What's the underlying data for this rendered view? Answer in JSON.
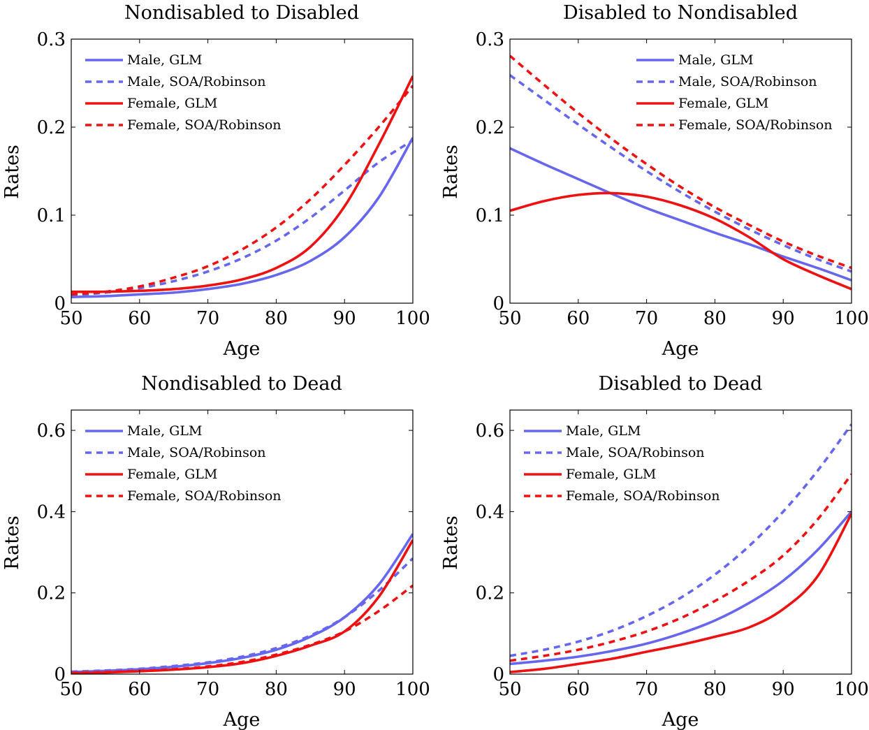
{
  "chart_data": [
    {
      "type": "line",
      "title": "Nondisabled to Disabled",
      "xlabel": "Age",
      "ylabel": "Rates",
      "xlim": [
        50,
        100
      ],
      "ylim": [
        0,
        0.3
      ],
      "xticks": [
        50,
        60,
        70,
        80,
        90,
        100
      ],
      "yticks": [
        0,
        0.1,
        0.2,
        0.3
      ],
      "xtick_labels": [
        "50",
        "60",
        "70",
        "80",
        "90",
        "100"
      ],
      "ytick_labels": [
        "0",
        "0.1",
        "0.2",
        "0.3"
      ],
      "grid": false,
      "legend_position": "top-left",
      "x": [
        50,
        55,
        60,
        65,
        70,
        75,
        80,
        85,
        90,
        95,
        100
      ],
      "series": [
        {
          "name": "Male, GLM",
          "color": "#6666ee",
          "dash": "solid",
          "values": [
            0.007,
            0.008,
            0.01,
            0.012,
            0.016,
            0.022,
            0.032,
            0.048,
            0.075,
            0.12,
            0.188
          ]
        },
        {
          "name": "Male, SOA/Robinson",
          "color": "#6666ee",
          "dash": "dashed",
          "values": [
            0.009,
            0.012,
            0.017,
            0.025,
            0.036,
            0.051,
            0.071,
            0.097,
            0.128,
            0.16,
            0.185
          ]
        },
        {
          "name": "Female, GLM",
          "color": "#ee1111",
          "dash": "solid",
          "values": [
            0.013,
            0.013,
            0.014,
            0.016,
            0.02,
            0.027,
            0.04,
            0.064,
            0.11,
            0.18,
            0.258
          ]
        },
        {
          "name": "Female, SOA/Robinson",
          "color": "#ee1111",
          "dash": "dashed",
          "values": [
            0.01,
            0.013,
            0.019,
            0.029,
            0.042,
            0.061,
            0.086,
            0.118,
            0.157,
            0.2,
            0.247
          ]
        }
      ]
    },
    {
      "type": "line",
      "title": "Disabled to Nondisabled",
      "xlabel": "Age",
      "ylabel": "Rates",
      "xlim": [
        50,
        100
      ],
      "ylim": [
        0,
        0.3
      ],
      "xticks": [
        50,
        60,
        70,
        80,
        90,
        100
      ],
      "yticks": [
        0,
        0.1,
        0.2,
        0.3
      ],
      "xtick_labels": [
        "50",
        "60",
        "70",
        "80",
        "90",
        "100"
      ],
      "ytick_labels": [
        "0",
        "0.1",
        "0.2",
        "0.3"
      ],
      "grid": false,
      "legend_position": "top-right",
      "x": [
        50,
        55,
        60,
        65,
        70,
        75,
        80,
        85,
        90,
        95,
        100
      ],
      "series": [
        {
          "name": "Male, GLM",
          "color": "#6666ee",
          "dash": "solid",
          "values": [
            0.176,
            0.158,
            0.141,
            0.124,
            0.108,
            0.094,
            0.08,
            0.067,
            0.053,
            0.04,
            0.026
          ]
        },
        {
          "name": "Male, SOA/Robinson",
          "color": "#6666ee",
          "dash": "dashed",
          "values": [
            0.259,
            0.231,
            0.203,
            0.176,
            0.15,
            0.126,
            0.104,
            0.084,
            0.066,
            0.05,
            0.036
          ]
        },
        {
          "name": "Female, GLM",
          "color": "#ee1111",
          "dash": "solid",
          "values": [
            0.105,
            0.116,
            0.123,
            0.125,
            0.121,
            0.111,
            0.096,
            0.075,
            0.05,
            0.032,
            0.016
          ]
        },
        {
          "name": "Female, SOA/Robinson",
          "color": "#ee1111",
          "dash": "dashed",
          "values": [
            0.281,
            0.248,
            0.216,
            0.186,
            0.158,
            0.132,
            0.109,
            0.089,
            0.07,
            0.054,
            0.04
          ]
        }
      ]
    },
    {
      "type": "line",
      "title": "Nondisabled to Dead",
      "xlabel": "Age",
      "ylabel": "Rates",
      "xlim": [
        50,
        100
      ],
      "ylim": [
        0,
        0.65
      ],
      "xticks": [
        50,
        60,
        70,
        80,
        90,
        100
      ],
      "yticks": [
        0,
        0.2,
        0.4,
        0.6
      ],
      "xtick_labels": [
        "50",
        "60",
        "70",
        "80",
        "90",
        "100"
      ],
      "ytick_labels": [
        "0",
        "0.2",
        "0.4",
        "0.6"
      ],
      "grid": false,
      "legend_position": "top-left",
      "x": [
        50,
        55,
        60,
        65,
        70,
        75,
        80,
        85,
        90,
        95,
        100
      ],
      "series": [
        {
          "name": "Male, GLM",
          "color": "#6666ee",
          "dash": "solid",
          "values": [
            0.005,
            0.008,
            0.012,
            0.018,
            0.027,
            0.04,
            0.06,
            0.092,
            0.14,
            0.22,
            0.345
          ]
        },
        {
          "name": "Male, SOA/Robinson",
          "color": "#6666ee",
          "dash": "dashed",
          "values": [
            0.006,
            0.009,
            0.013,
            0.02,
            0.029,
            0.043,
            0.064,
            0.095,
            0.14,
            0.205,
            0.285
          ]
        },
        {
          "name": "Female, GLM",
          "color": "#ee1111",
          "dash": "solid",
          "values": [
            0.002,
            0.004,
            0.007,
            0.011,
            0.017,
            0.027,
            0.045,
            0.07,
            0.105,
            0.19,
            0.33
          ]
        },
        {
          "name": "Female, SOA/Robinson",
          "color": "#ee1111",
          "dash": "dashed",
          "values": [
            0.003,
            0.005,
            0.008,
            0.012,
            0.019,
            0.03,
            0.048,
            0.072,
            0.105,
            0.155,
            0.218
          ]
        }
      ]
    },
    {
      "type": "line",
      "title": "Disabled to Dead",
      "xlabel": "Age",
      "ylabel": "Rates",
      "xlim": [
        50,
        100
      ],
      "ylim": [
        0,
        0.65
      ],
      "xticks": [
        50,
        60,
        70,
        80,
        90,
        100
      ],
      "yticks": [
        0,
        0.2,
        0.4,
        0.6
      ],
      "xtick_labels": [
        "50",
        "60",
        "70",
        "80",
        "90",
        "100"
      ],
      "ytick_labels": [
        "0",
        "0.2",
        "0.4",
        "0.6"
      ],
      "grid": false,
      "legend_position": "top-left",
      "x": [
        50,
        55,
        60,
        65,
        70,
        75,
        80,
        85,
        90,
        95,
        100
      ],
      "series": [
        {
          "name": "Male, GLM",
          "color": "#6666ee",
          "dash": "solid",
          "values": [
            0.025,
            0.033,
            0.043,
            0.057,
            0.075,
            0.1,
            0.132,
            0.175,
            0.23,
            0.305,
            0.4
          ]
        },
        {
          "name": "Male, SOA/Robinson",
          "color": "#6666ee",
          "dash": "dashed",
          "values": [
            0.045,
            0.06,
            0.08,
            0.107,
            0.143,
            0.188,
            0.245,
            0.315,
            0.4,
            0.5,
            0.615
          ]
        },
        {
          "name": "Female, GLM",
          "color": "#ee1111",
          "dash": "solid",
          "values": [
            0.005,
            0.013,
            0.025,
            0.038,
            0.055,
            0.072,
            0.092,
            0.115,
            0.16,
            0.24,
            0.395
          ]
        },
        {
          "name": "Female, SOA/Robinson",
          "color": "#ee1111",
          "dash": "dashed",
          "values": [
            0.033,
            0.045,
            0.06,
            0.08,
            0.105,
            0.138,
            0.18,
            0.23,
            0.292,
            0.38,
            0.492
          ]
        }
      ]
    }
  ]
}
